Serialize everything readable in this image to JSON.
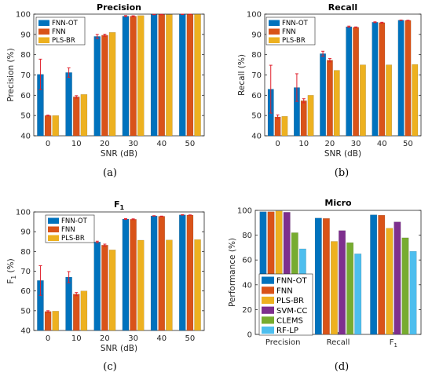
{
  "colors": {
    "FNN-OT": "#0072BD",
    "FNN": "#D95319",
    "PLS-BR": "#EDB120",
    "SVM-CC": "#7E2F8E",
    "CLEMS": "#77AC30",
    "RF-LP": "#4DBEEE",
    "errorbar": "#E0202C"
  },
  "chart_data": [
    {
      "id": "precision",
      "type": "bar",
      "title": "Precision",
      "caption": "(a)",
      "xlabel": "SNR (dB)",
      "ylabel": "Precision (%)",
      "categories": [
        "0",
        "10",
        "20",
        "30",
        "40",
        "50"
      ],
      "ylim": [
        40,
        100
      ],
      "yticks": [
        "40",
        "50",
        "60",
        "70",
        "80",
        "90",
        "100"
      ],
      "grid": false,
      "legend": "top-left",
      "series": [
        {
          "name": "FNN-OT",
          "values": [
            70.3,
            71.2,
            89.0,
            99.0,
            99.8,
            99.9
          ],
          "errors": [
            7.5,
            2.3,
            1.0,
            0.3,
            0.1,
            0.1
          ]
        },
        {
          "name": "FNN",
          "values": [
            50.0,
            59.2,
            89.6,
            99.0,
            99.8,
            99.9
          ],
          "errors": [
            0.2,
            0.6,
            0.5,
            0.2,
            0.1,
            0.1
          ]
        },
        {
          "name": "PLS-BR",
          "values": [
            50.0,
            60.4,
            91.0,
            99.3,
            99.8,
            99.9
          ],
          "errors": [
            0,
            0,
            0,
            0,
            0,
            0
          ]
        }
      ]
    },
    {
      "id": "recall",
      "type": "bar",
      "title": "Recall",
      "caption": "(b)",
      "xlabel": "SNR (dB)",
      "ylabel": "Recall (%)",
      "categories": [
        "0",
        "10",
        "20",
        "30",
        "40",
        "50"
      ],
      "ylim": [
        40,
        100
      ],
      "yticks": [
        "40",
        "50",
        "60",
        "70",
        "80",
        "90",
        "100"
      ],
      "grid": false,
      "legend": "top-left",
      "series": [
        {
          "name": "FNN-OT",
          "values": [
            63.0,
            63.8,
            80.5,
            93.8,
            96.0,
            97.0
          ],
          "errors": [
            11.8,
            6.8,
            1.2,
            0.3,
            0.2,
            0.1
          ]
        },
        {
          "name": "FNN",
          "values": [
            49.3,
            57.3,
            77.3,
            93.5,
            95.8,
            96.9
          ],
          "errors": [
            1.0,
            1.0,
            0.8,
            0.2,
            0.2,
            0.1
          ]
        },
        {
          "name": "PLS-BR",
          "values": [
            49.6,
            60.0,
            72.3,
            75.0,
            75.0,
            75.2
          ],
          "errors": [
            0,
            0,
            0,
            0,
            0,
            0
          ]
        }
      ]
    },
    {
      "id": "f1",
      "type": "bar",
      "title": "F",
      "title_sub": "1",
      "caption": "(c)",
      "xlabel": "SNR (dB)",
      "ylabel": "F",
      "ylabel_sub": "1",
      "ylabel_suffix": " (%)",
      "categories": [
        "0",
        "10",
        "20",
        "30",
        "40",
        "50"
      ],
      "ylim": [
        40,
        100
      ],
      "yticks": [
        "40",
        "50",
        "60",
        "70",
        "80",
        "90",
        "100"
      ],
      "grid": false,
      "legend": "top-left",
      "series": [
        {
          "name": "FNN-OT",
          "values": [
            65.3,
            67.0,
            84.8,
            96.4,
            98.0,
            98.5
          ],
          "errors": [
            7.5,
            2.8,
            0.4,
            0.2,
            0.1,
            0.1
          ]
        },
        {
          "name": "FNN",
          "values": [
            49.6,
            58.4,
            83.2,
            96.3,
            97.8,
            98.4
          ],
          "errors": [
            0.4,
            0.8,
            0.5,
            0.2,
            0.1,
            0.1
          ]
        },
        {
          "name": "PLS-BR",
          "values": [
            49.8,
            60.0,
            80.8,
            85.7,
            85.8,
            86.0
          ],
          "errors": [
            0,
            0,
            0,
            0,
            0,
            0
          ]
        }
      ]
    },
    {
      "id": "micro",
      "type": "bar",
      "title": "Micro",
      "caption": "(d)",
      "xlabel": "",
      "ylabel": "Performance (%)",
      "categories": [
        "Precision",
        "Recall",
        "F"
      ],
      "category_subs": [
        "",
        "",
        "1"
      ],
      "ylim": [
        0,
        100
      ],
      "yticks": [
        "0",
        "20",
        "40",
        "60",
        "80",
        "100"
      ],
      "grid": false,
      "legend": "bottom-left",
      "series": [
        {
          "name": "FNN-OT",
          "values": [
            98.9,
            93.8,
            96.4
          ]
        },
        {
          "name": "FNN",
          "values": [
            98.9,
            93.5,
            96.1
          ]
        },
        {
          "name": "PLS-BR",
          "values": [
            99.5,
            75.0,
            85.6
          ]
        },
        {
          "name": "SVM-CC",
          "values": [
            98.5,
            83.7,
            90.7
          ]
        },
        {
          "name": "CLEMS",
          "values": [
            82.0,
            74.0,
            77.9
          ]
        },
        {
          "name": "RF-LP",
          "values": [
            69.0,
            65.0,
            67.0
          ]
        }
      ]
    }
  ]
}
